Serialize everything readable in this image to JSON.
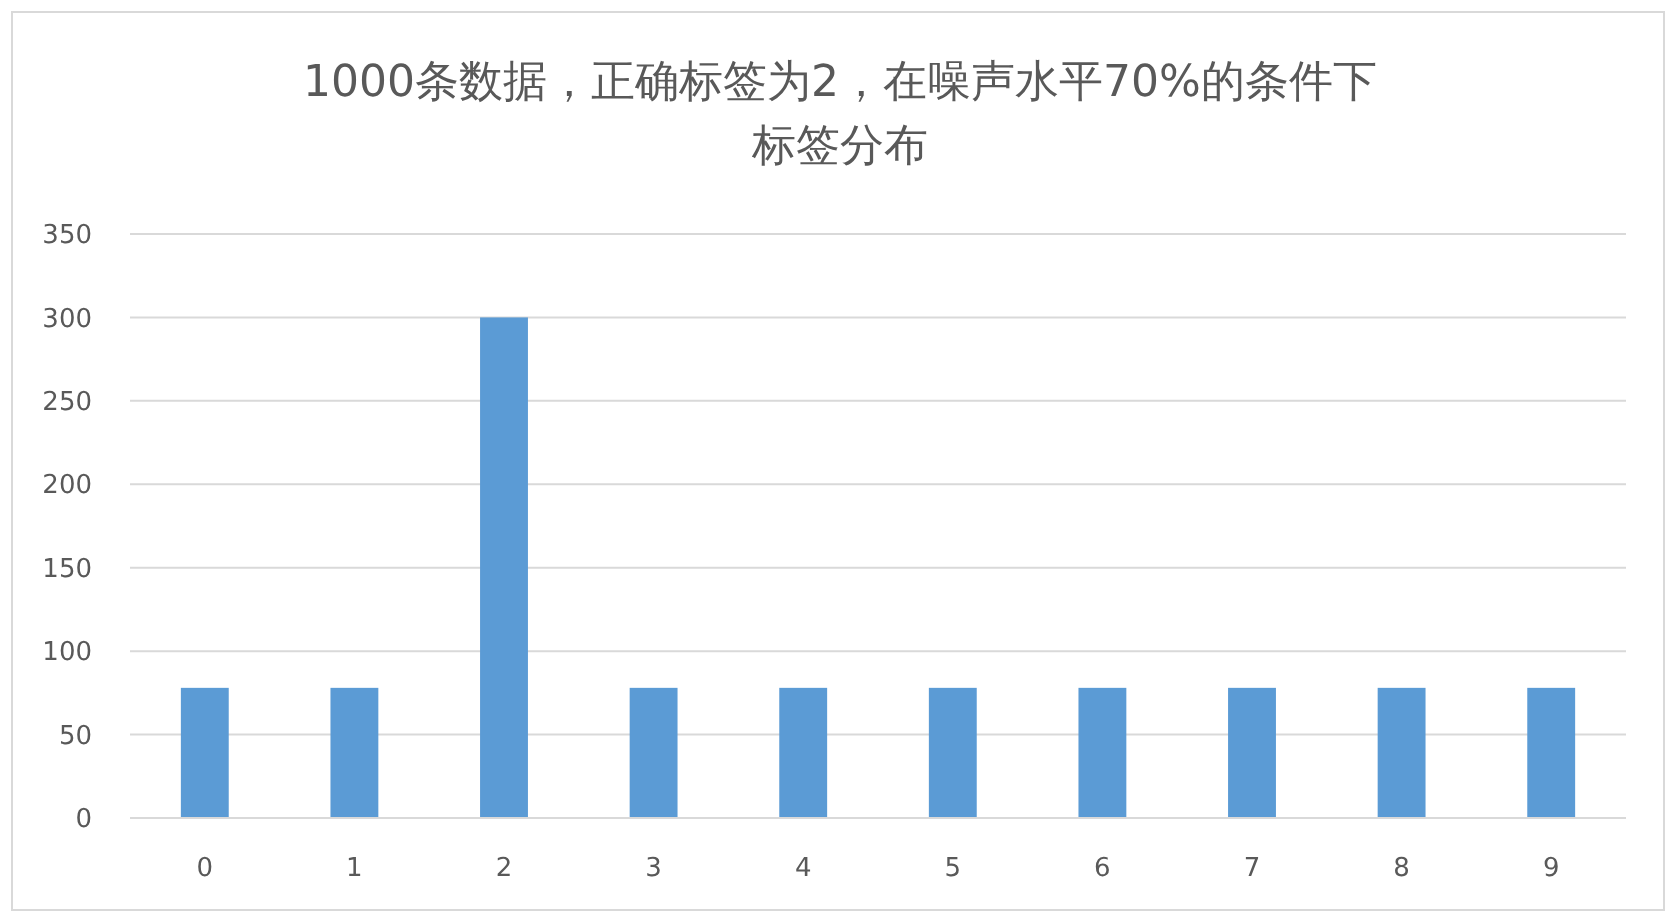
{
  "chart_data": {
    "type": "bar",
    "title": "1000条数据，正确标签为2，在噪声水平70%的条件下标签分布",
    "categories": [
      "0",
      "1",
      "2",
      "3",
      "4",
      "5",
      "6",
      "7",
      "8",
      "9"
    ],
    "values": [
      78,
      78,
      300,
      78,
      78,
      78,
      78,
      78,
      78,
      78
    ],
    "color": "#5b9bd5",
    "ylim": [
      0,
      350
    ],
    "yticks": [
      0,
      50,
      100,
      150,
      200,
      250,
      300,
      350
    ],
    "grid": "y"
  }
}
